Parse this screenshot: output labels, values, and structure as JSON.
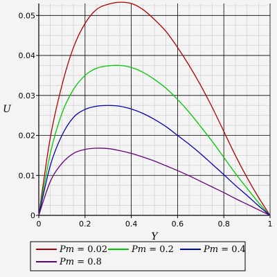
{
  "chart_data": {
    "type": "line",
    "xlabel": "Y",
    "ylabel": "U",
    "xlim": [
      0,
      1
    ],
    "ylim": [
      0,
      0.053
    ],
    "grid": true,
    "legend_position": "bottom",
    "x_ticks": [
      "0",
      "0.2",
      "0.4",
      "0.6",
      "0.8",
      "1"
    ],
    "y_ticks": [
      "0",
      "0.01",
      "0.02",
      "0.03",
      "0.04",
      "0.05"
    ],
    "x": [
      0,
      0.05,
      0.1,
      0.15,
      0.2,
      0.25,
      0.3,
      0.35,
      0.4,
      0.45,
      0.5,
      0.55,
      0.6,
      0.65,
      0.7,
      0.75,
      0.8,
      0.85,
      0.9,
      0.95,
      1
    ],
    "series": [
      {
        "name": "Pm = 0.02",
        "param": "Pm",
        "value": "0.02",
        "color": "#b00000",
        "values": [
          0,
          0.0195,
          0.0325,
          0.042,
          0.048,
          0.0515,
          0.0528,
          0.0533,
          0.053,
          0.0515,
          0.049,
          0.046,
          0.042,
          0.0375,
          0.0325,
          0.027,
          0.021,
          0.015,
          0.0095,
          0.0045,
          0
        ]
      },
      {
        "name": "Pm = 0.2",
        "param": "Pm",
        "value": "0.2",
        "color": "#00c800",
        "values": [
          0,
          0.0155,
          0.0255,
          0.0315,
          0.035,
          0.0368,
          0.0374,
          0.0375,
          0.037,
          0.0358,
          0.034,
          0.0318,
          0.029,
          0.0258,
          0.0222,
          0.0185,
          0.0145,
          0.0105,
          0.0068,
          0.0032,
          0
        ]
      },
      {
        "name": "Pm = 0.4",
        "param": "Pm",
        "value": "0.4",
        "color": "#0000b4",
        "values": [
          0,
          0.0125,
          0.02,
          0.0245,
          0.0265,
          0.0273,
          0.0275,
          0.0273,
          0.0266,
          0.0255,
          0.024,
          0.0222,
          0.02,
          0.0178,
          0.0154,
          0.0128,
          0.0102,
          0.0075,
          0.005,
          0.0024,
          0
        ]
      },
      {
        "name": "Pm = 0.8",
        "param": "Pm",
        "value": "0.8",
        "color": "#640078",
        "values": [
          0,
          0.0085,
          0.013,
          0.0155,
          0.0165,
          0.0168,
          0.0167,
          0.0162,
          0.0155,
          0.0146,
          0.0136,
          0.0124,
          0.0112,
          0.0099,
          0.0085,
          0.0071,
          0.0057,
          0.0042,
          0.0028,
          0.0014,
          0
        ]
      }
    ]
  }
}
